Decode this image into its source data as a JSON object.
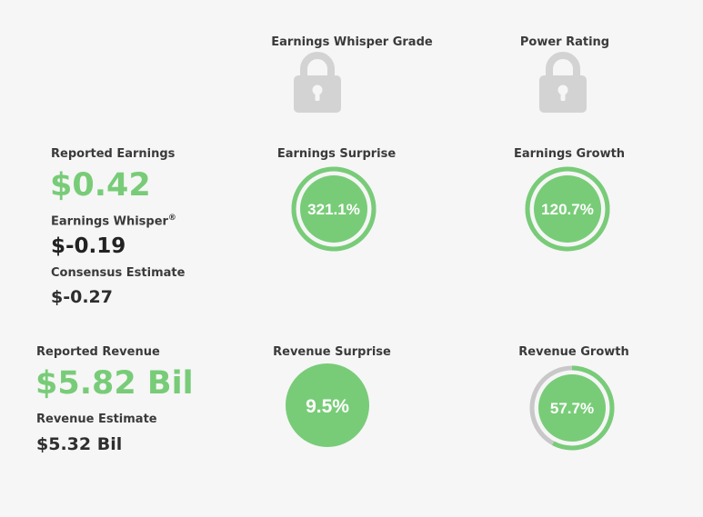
{
  "grades": {
    "whisper_grade_label": "Earnings Whisper Grade",
    "power_rating_label": "Power Rating",
    "icon": "lock-icon"
  },
  "earnings": {
    "reported_label": "Reported Earnings",
    "reported_value": "$0.42",
    "whisper_label": "Earnings Whisper",
    "whisper_sup": "®",
    "whisper_value": "$-0.19",
    "consensus_label": "Consensus Estimate",
    "consensus_value": "$-0.27",
    "surprise_label": "Earnings Surprise",
    "surprise_value": "321.1%",
    "surprise_fill": 1.0,
    "growth_label": "Earnings Growth",
    "growth_value": "120.7%",
    "growth_fill": 1.0
  },
  "revenue": {
    "reported_label": "Reported Revenue",
    "reported_value": "$5.82 Bil",
    "estimate_label": "Revenue Estimate",
    "estimate_value": "$5.32 Bil",
    "surprise_label": "Revenue Surprise",
    "surprise_value": "9.5%",
    "growth_label": "Revenue Growth",
    "growth_value": "57.7%",
    "growth_fill": 0.577
  },
  "colors": {
    "background": "#f6f6f6",
    "accent_green": "#78cc78",
    "track_gray": "#c8c8c8",
    "lock_gray": "#d3d3d3"
  }
}
